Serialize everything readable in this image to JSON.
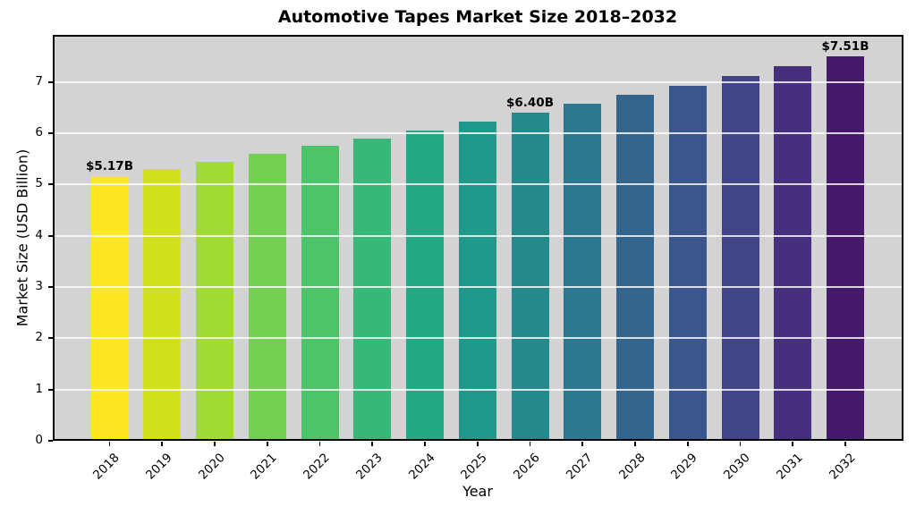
{
  "chart_data": {
    "type": "bar",
    "title": "Automotive Tapes Market Size 2018–2032",
    "xlabel": "Year",
    "ylabel": "Market Size (USD Billion)",
    "categories": [
      "2018",
      "2019",
      "2020",
      "2021",
      "2022",
      "2023",
      "2024",
      "2025",
      "2026",
      "2027",
      "2028",
      "2029",
      "2030",
      "2031",
      "2032"
    ],
    "values": [
      5.17,
      5.31,
      5.45,
      5.6,
      5.75,
      5.9,
      6.06,
      6.22,
      6.4,
      6.57,
      6.75,
      6.93,
      7.12,
      7.31,
      7.51
    ],
    "bar_colors": [
      "#fde725",
      "#d2e11e",
      "#a3db36",
      "#74d053",
      "#4ec46a",
      "#37b878",
      "#25a985",
      "#21998a",
      "#25898c",
      "#2d788e",
      "#34668d",
      "#3b568b",
      "#414487",
      "#46307d",
      "#451a6b"
    ],
    "annotations": [
      {
        "index": 0,
        "label": "$5.17B"
      },
      {
        "index": 8,
        "label": "$6.40B"
      },
      {
        "index": 14,
        "label": "$7.51B"
      }
    ],
    "ylim": [
      0,
      7.92
    ],
    "yticks": [
      0,
      1,
      2,
      3,
      4,
      5,
      6,
      7
    ],
    "xtick_rotation_deg": 45,
    "grid": true,
    "legend_position": "none",
    "colors": {
      "plot_background": "#d3d3d3",
      "figure_background": "#ffffff",
      "gridline": "rgba(255,255,255,0.8)",
      "axis": "#000000",
      "text": "#000000"
    }
  }
}
